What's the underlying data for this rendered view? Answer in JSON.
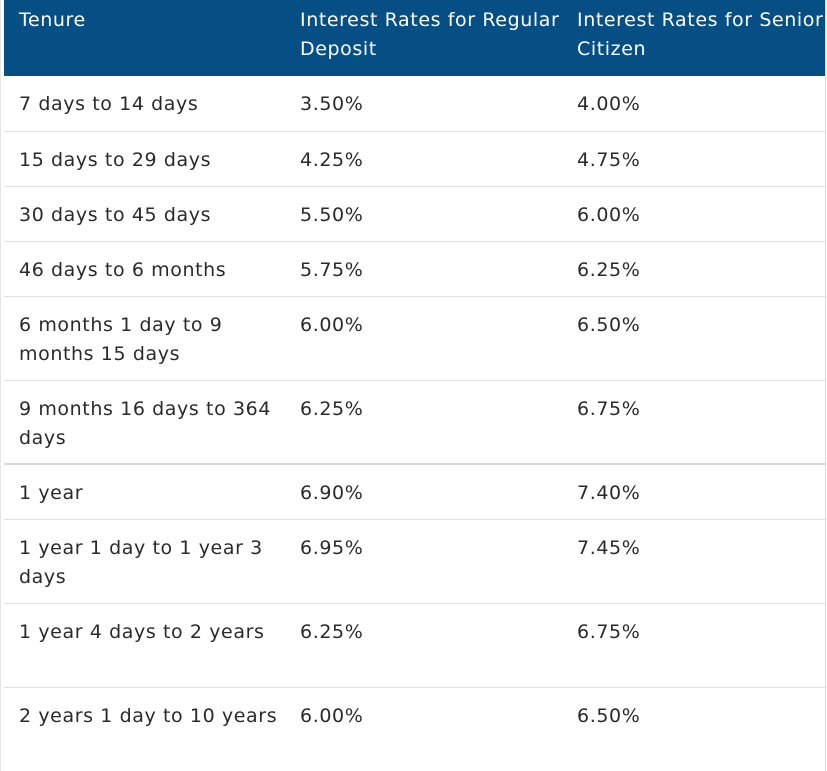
{
  "table": {
    "headers": [
      "Tenure",
      "Interest Rates for Regular Deposit",
      "Interest Rates for Senior Citizen"
    ],
    "rows": [
      {
        "tenure": "7 days to 14 days",
        "regular": "3.50%",
        "senior": "4.00%"
      },
      {
        "tenure": "15 days to 29 days",
        "regular": "4.25%",
        "senior": "4.75%"
      },
      {
        "tenure": "30 days to 45 days",
        "regular": "5.50%",
        "senior": "6.00%"
      },
      {
        "tenure": "46 days to 6 months",
        "regular": "5.75%",
        "senior": "6.25%"
      },
      {
        "tenure": "6 months 1 day to 9 months 15 days",
        "regular": "6.00%",
        "senior": "6.50%"
      },
      {
        "tenure": "9 months 16 days to 364 days",
        "regular": "6.25%",
        "senior": "6.75%"
      },
      {
        "tenure": "1 year",
        "regular": "6.90%",
        "senior": "7.40%"
      },
      {
        "tenure": "1 year 1 day to 1 year 3 days",
        "regular": "6.95%",
        "senior": "7.45%"
      },
      {
        "tenure": "1 year 4 days to 2 years",
        "regular": "6.25%",
        "senior": "6.75%"
      },
      {
        "tenure": "2 years 1 day to 10 years",
        "regular": "6.00%",
        "senior": "6.50%"
      }
    ]
  },
  "colors": {
    "header_background": "#064f85",
    "header_text": "#ffffff",
    "body_text": "#2a2a2a",
    "row_divider": "#e2e2e2"
  }
}
